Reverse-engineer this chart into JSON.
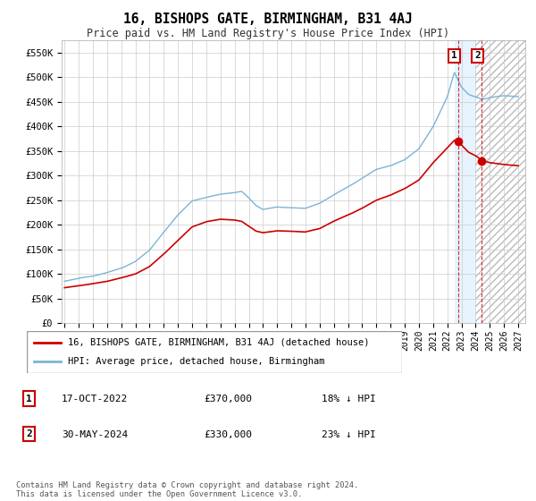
{
  "title": "16, BISHOPS GATE, BIRMINGHAM, B31 4AJ",
  "subtitle": "Price paid vs. HM Land Registry's House Price Index (HPI)",
  "hpi_color": "#7ab4d8",
  "price_color": "#cc0000",
  "background_color": "#ffffff",
  "grid_color": "#cccccc",
  "ylim": [
    0,
    575000
  ],
  "yticks": [
    0,
    50000,
    100000,
    150000,
    200000,
    250000,
    300000,
    350000,
    400000,
    450000,
    500000,
    550000
  ],
  "ytick_labels": [
    "£0",
    "£50K",
    "£100K",
    "£150K",
    "£200K",
    "£250K",
    "£300K",
    "£350K",
    "£400K",
    "£450K",
    "£500K",
    "£550K"
  ],
  "xtick_start": 1995,
  "xtick_end": 2027,
  "legend_label_price": "16, BISHOPS GATE, BIRMINGHAM, B31 4AJ (detached house)",
  "legend_label_hpi": "HPI: Average price, detached house, Birmingham",
  "transaction1_label": "1",
  "transaction1_date": "17-OCT-2022",
  "transaction1_price": "£370,000",
  "transaction1_hpi": "18% ↓ HPI",
  "transaction1_x": 2022.8,
  "transaction1_y": 370000,
  "transaction2_label": "2",
  "transaction2_date": "30-MAY-2024",
  "transaction2_price": "£330,000",
  "transaction2_hpi": "23% ↓ HPI",
  "transaction2_x": 2024.42,
  "transaction2_y": 330000,
  "footer": "Contains HM Land Registry data © Crown copyright and database right 2024.\nThis data is licensed under the Open Government Licence v3.0.",
  "shade_solid_start": 2022.5,
  "shade_solid_end": 2024.0,
  "shade_hatch_start": 2024.0,
  "shade_hatch_end": 2027.5
}
